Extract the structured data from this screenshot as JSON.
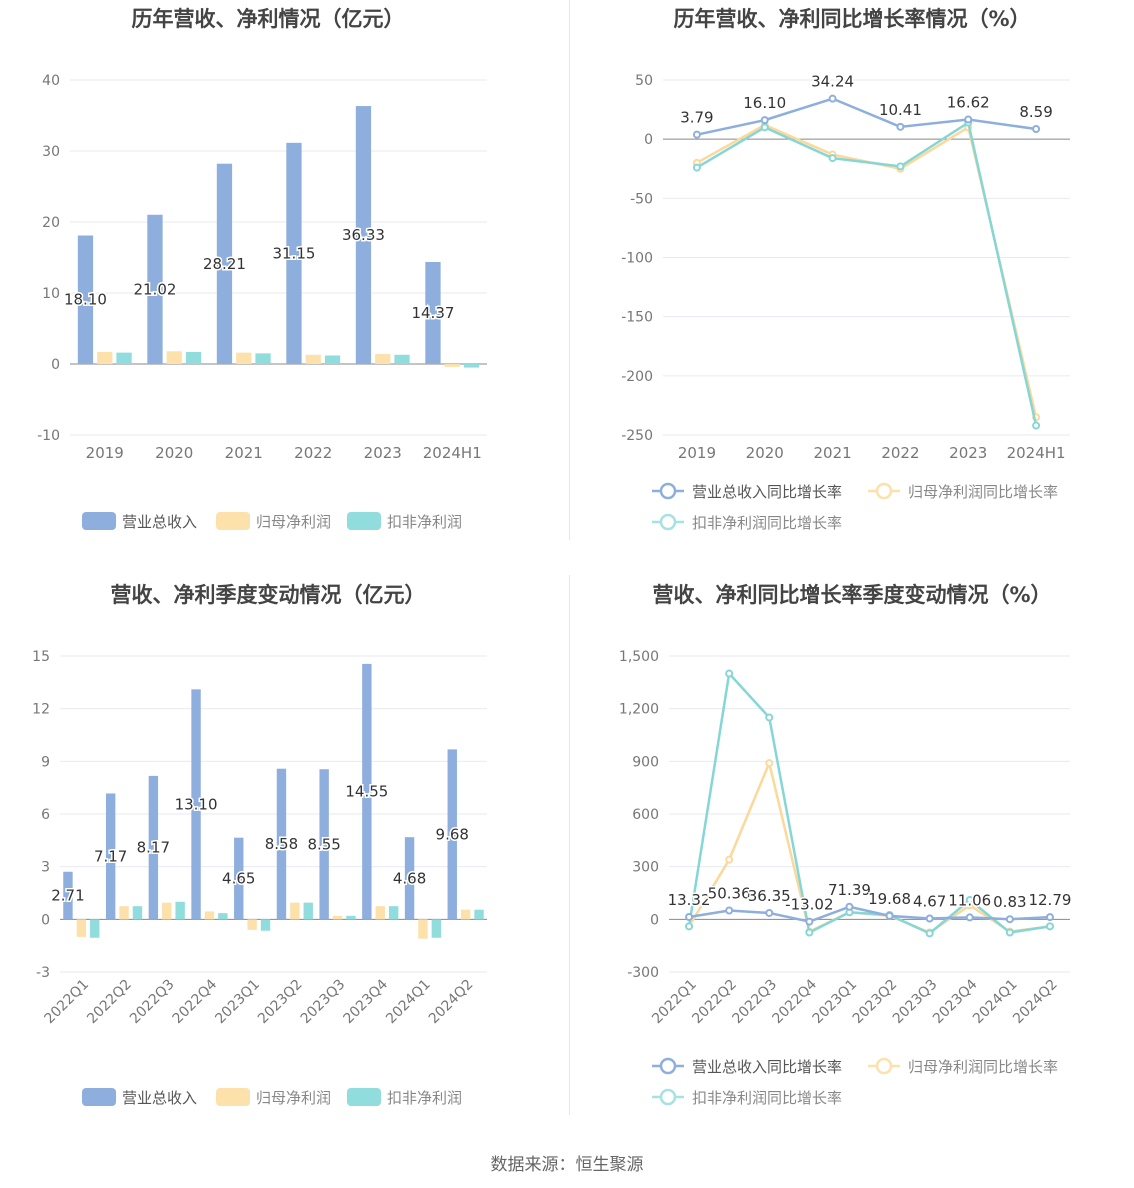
{
  "source": "数据来源：恒生聚源",
  "colors": {
    "revenue": "#8eaedd",
    "net": "#fde1ab",
    "deducted": "#91dcdc",
    "axis": "#666666",
    "grid": "#e8eaf2",
    "title": "#444444",
    "label": "#333333"
  },
  "chart_data": [
    {
      "id": "annual-amount",
      "type": "bar",
      "title": "历年营收、净利情况（亿元）",
      "categories": [
        "2019",
        "2020",
        "2021",
        "2022",
        "2023",
        "2024H1"
      ],
      "ylim": [
        -10,
        40
      ],
      "yticks": [
        -10,
        0,
        10,
        20,
        30,
        40
      ],
      "ytick_labels": [
        "-10",
        "0",
        "10",
        "20",
        "30",
        "40"
      ],
      "series": [
        {
          "name": "营业总收入",
          "values": [
            18.1,
            21.02,
            28.21,
            31.15,
            36.33,
            14.37
          ],
          "labels": [
            "18.10",
            "21.02",
            "28.21",
            "31.15",
            "36.33",
            "14.37"
          ]
        },
        {
          "name": "归母净利润",
          "values": [
            1.7,
            1.8,
            1.6,
            1.3,
            1.4,
            -0.4
          ]
        },
        {
          "name": "扣非净利润",
          "values": [
            1.6,
            1.7,
            1.5,
            1.2,
            1.3,
            -0.5
          ]
        }
      ],
      "legend": [
        "营业总收入",
        "归母净利润",
        "扣非净利润"
      ]
    },
    {
      "id": "annual-growth",
      "type": "line",
      "title": "历年营收、净利同比增长率情况（%）",
      "categories": [
        "2019",
        "2020",
        "2021",
        "2022",
        "2023",
        "2024H1"
      ],
      "ylim": [
        -250,
        50
      ],
      "yticks": [
        -250,
        -200,
        -150,
        -100,
        -50,
        0,
        50
      ],
      "ytick_labels": [
        "-250",
        "-200",
        "-150",
        "-100",
        "-50",
        "0",
        "50"
      ],
      "series": [
        {
          "name": "营业总收入同比增长率",
          "values": [
            3.79,
            16.1,
            34.24,
            10.41,
            16.62,
            8.59
          ],
          "labels": [
            "3.79",
            "16.10",
            "34.24",
            "10.41",
            "16.62",
            "8.59"
          ]
        },
        {
          "name": "归母净利润同比增长率",
          "values": [
            -20,
            12,
            -13,
            -25,
            10,
            -235
          ]
        },
        {
          "name": "扣非净利润同比增长率",
          "values": [
            -24,
            10,
            -16,
            -23,
            14,
            -242
          ]
        }
      ],
      "legend": [
        "营业总收入同比增长率",
        "归母净利润同比增长率",
        "扣非净利润同比增长率"
      ]
    },
    {
      "id": "quarterly-amount",
      "type": "bar",
      "title": "营收、净利季度变动情况（亿元）",
      "categories": [
        "2022Q1",
        "2022Q2",
        "2022Q3",
        "2022Q4",
        "2023Q1",
        "2023Q2",
        "2023Q3",
        "2023Q4",
        "2024Q1",
        "2024Q2"
      ],
      "ylim": [
        -3,
        15
      ],
      "yticks": [
        -3,
        0,
        3,
        6,
        9,
        12,
        15
      ],
      "ytick_labels": [
        "-3",
        "0",
        "3",
        "6",
        "9",
        "12",
        "15"
      ],
      "series": [
        {
          "name": "营业总收入",
          "values": [
            2.71,
            7.17,
            8.17,
            13.1,
            4.65,
            8.58,
            8.55,
            14.55,
            4.68,
            9.68
          ],
          "labels": [
            "2.71",
            "7.17",
            "8.17",
            "13.10",
            "4.65",
            "8.58",
            "8.55",
            "14.55",
            "4.68",
            "9.68"
          ]
        },
        {
          "name": "归母净利润",
          "values": [
            -1.0,
            0.75,
            0.95,
            0.45,
            -0.6,
            0.95,
            0.2,
            0.75,
            -1.1,
            0.55
          ]
        },
        {
          "name": "扣非净利润",
          "values": [
            -1.05,
            0.75,
            1.0,
            0.35,
            -0.65,
            0.95,
            0.2,
            0.75,
            -1.05,
            0.55
          ]
        }
      ],
      "legend": [
        "营业总收入",
        "归母净利润",
        "扣非净利润"
      ]
    },
    {
      "id": "quarterly-growth",
      "type": "line",
      "title": "营收、净利同比增长率季度变动情况（%）",
      "categories": [
        "2022Q1",
        "2022Q2",
        "2022Q3",
        "2022Q4",
        "2023Q1",
        "2023Q2",
        "2023Q3",
        "2023Q4",
        "2024Q1",
        "2024Q2"
      ],
      "ylim": [
        -300,
        1500
      ],
      "yticks": [
        -300,
        0,
        300,
        600,
        900,
        1200,
        1500
      ],
      "ytick_labels": [
        "-300",
        "0",
        "300",
        "600",
        "900",
        "1,200",
        "1,500"
      ],
      "series": [
        {
          "name": "营业总收入同比增长率",
          "values": [
            13.32,
            50.36,
            36.35,
            -13.02,
            71.39,
            19.68,
            4.67,
            11.06,
            0.83,
            12.79
          ],
          "labels": [
            "13.32",
            "50.36",
            "36.35",
            "-13.02",
            "71.39",
            "19.68",
            "4.67",
            "11.06",
            "0.83",
            "12.79"
          ]
        },
        {
          "name": "归母净利润同比增长率",
          "values": [
            -40,
            340,
            890,
            -70,
            40,
            20,
            -75,
            80,
            -70,
            -40
          ]
        },
        {
          "name": "扣非净利润同比增长率",
          "values": [
            -40,
            1400,
            1150,
            -75,
            40,
            25,
            -80,
            110,
            -75,
            -40
          ]
        }
      ],
      "legend": [
        "营业总收入同比增长率",
        "归母净利润同比增长率",
        "扣非净利润同比增长率"
      ]
    }
  ]
}
